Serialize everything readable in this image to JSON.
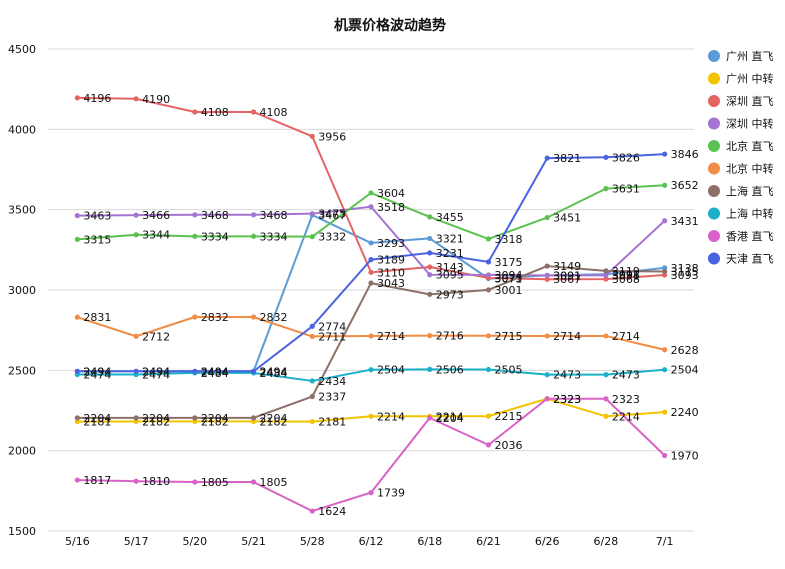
{
  "chart_data": {
    "type": "line",
    "title": "机票价格波动趋势",
    "xlabel": "",
    "ylabel": "",
    "categories": [
      "5/16",
      "5/17",
      "5/20",
      "5/21",
      "5/28",
      "6/12",
      "6/18",
      "6/21",
      "6/26",
      "6/28",
      "7/1"
    ],
    "ylim": [
      1500,
      4500
    ],
    "yticks": [
      1500,
      2000,
      2500,
      3000,
      3500,
      4000,
      4500
    ],
    "grid": true,
    "legend_position": "right",
    "series": [
      {
        "name": "广州 直飞",
        "color": "#5b9bd5",
        "values": [
          2494,
          2494,
          2494,
          2494,
          3467,
          3293,
          3321,
          3071,
          3091,
          3098,
          3138
        ]
      },
      {
        "name": "广州 中转",
        "color": "#f2c300",
        "values": [
          2181,
          2182,
          2182,
          2182,
          2181,
          2214,
          2214,
          2215,
          2323,
          2214,
          2240
        ]
      },
      {
        "name": "深圳 直飞",
        "color": "#e46464",
        "values": [
          4196,
          4190,
          4108,
          4108,
          3956,
          3110,
          3143,
          3075,
          3067,
          3068,
          3093
        ]
      },
      {
        "name": "深圳 中转",
        "color": "#a574d0",
        "values": [
          3463,
          3466,
          3468,
          3468,
          3475,
          3518,
          3095,
          3094,
          3091,
          3091,
          3431
        ]
      },
      {
        "name": "北京 直飞",
        "color": "#5bc251",
        "values": [
          3315,
          3344,
          3334,
          3334,
          3332,
          3604,
          3455,
          3318,
          3451,
          3631,
          3652
        ]
      },
      {
        "name": "北京 中转",
        "color": "#f08c46",
        "values": [
          2831,
          2712,
          2832,
          2832,
          2711,
          2714,
          2716,
          2715,
          2714,
          2714,
          2628
        ]
      },
      {
        "name": "上海 直飞",
        "color": "#8c7068",
        "values": [
          2204,
          2204,
          2204,
          2204,
          2337,
          3043,
          2973,
          3001,
          3149,
          3119,
          3115
        ]
      },
      {
        "name": "上海 中转",
        "color": "#1ab0c8",
        "values": [
          2474,
          2474,
          2484,
          2484,
          2434,
          2504,
          2506,
          2505,
          2473,
          2473,
          2504
        ]
      },
      {
        "name": "香港 直飞",
        "color": "#d962c8",
        "values": [
          1817,
          1810,
          1805,
          1805,
          1624,
          1739,
          2204,
          2036,
          2323,
          2323,
          1970
        ]
      },
      {
        "name": "天津 直飞",
        "color": "#4a63e0",
        "values": [
          2494,
          2494,
          2494,
          2494,
          2774,
          3189,
          3231,
          3175,
          3821,
          3826,
          3846
        ]
      }
    ],
    "data_labels": [
      {
        "series": 0,
        "i": 0,
        "text": "2494"
      },
      {
        "series": 0,
        "i": 1,
        "text": "2494"
      },
      {
        "series": 0,
        "i": 2,
        "text": "2494"
      },
      {
        "series": 0,
        "i": 3,
        "text": "2494"
      },
      {
        "series": 0,
        "i": 4,
        "text": "3467"
      },
      {
        "series": 0,
        "i": 5,
        "text": "3293"
      },
      {
        "series": 0,
        "i": 6,
        "text": "3321"
      },
      {
        "series": 0,
        "i": 7,
        "text": "3071"
      },
      {
        "series": 0,
        "i": 8,
        "text": "3091"
      },
      {
        "series": 0,
        "i": 9,
        "text": "3098"
      },
      {
        "series": 0,
        "i": 10,
        "text": "3138"
      },
      {
        "series": 1,
        "i": 0,
        "text": "2181"
      },
      {
        "series": 1,
        "i": 1,
        "text": "2182"
      },
      {
        "series": 1,
        "i": 2,
        "text": "2182"
      },
      {
        "series": 1,
        "i": 3,
        "text": "2182"
      },
      {
        "series": 1,
        "i": 4,
        "text": "2181"
      },
      {
        "series": 1,
        "i": 5,
        "text": "2214"
      },
      {
        "series": 1,
        "i": 6,
        "text": "2214"
      },
      {
        "series": 1,
        "i": 7,
        "text": "2215"
      },
      {
        "series": 1,
        "i": 8,
        "text": "2323"
      },
      {
        "series": 1,
        "i": 9,
        "text": "2214"
      },
      {
        "series": 1,
        "i": 10,
        "text": "2240"
      },
      {
        "series": 2,
        "i": 0,
        "text": "4196"
      },
      {
        "series": 2,
        "i": 1,
        "text": "4190"
      },
      {
        "series": 2,
        "i": 2,
        "text": "4108"
      },
      {
        "series": 2,
        "i": 3,
        "text": "4108"
      },
      {
        "series": 2,
        "i": 4,
        "text": "3956"
      },
      {
        "series": 2,
        "i": 5,
        "text": "3110"
      },
      {
        "series": 2,
        "i": 6,
        "text": "3143"
      },
      {
        "series": 2,
        "i": 7,
        "text": "3075"
      },
      {
        "series": 2,
        "i": 8,
        "text": "3067"
      },
      {
        "series": 2,
        "i": 9,
        "text": "3068"
      },
      {
        "series": 2,
        "i": 10,
        "text": "3093"
      },
      {
        "series": 3,
        "i": 0,
        "text": "3463"
      },
      {
        "series": 3,
        "i": 1,
        "text": "3466"
      },
      {
        "series": 3,
        "i": 2,
        "text": "3468"
      },
      {
        "series": 3,
        "i": 3,
        "text": "3468"
      },
      {
        "series": 3,
        "i": 4,
        "text": "3475"
      },
      {
        "series": 3,
        "i": 5,
        "text": "3518"
      },
      {
        "series": 3,
        "i": 6,
        "text": "3095"
      },
      {
        "series": 3,
        "i": 7,
        "text": "3094"
      },
      {
        "series": 3,
        "i": 8,
        "text": "3091"
      },
      {
        "series": 3,
        "i": 9,
        "text": "3091"
      },
      {
        "series": 3,
        "i": 10,
        "text": "3431"
      },
      {
        "series": 4,
        "i": 0,
        "text": "3315"
      },
      {
        "series": 4,
        "i": 1,
        "text": "3344"
      },
      {
        "series": 4,
        "i": 2,
        "text": "3334"
      },
      {
        "series": 4,
        "i": 3,
        "text": "3334"
      },
      {
        "series": 4,
        "i": 4,
        "text": "3332"
      },
      {
        "series": 4,
        "i": 5,
        "text": "3604"
      },
      {
        "series": 4,
        "i": 6,
        "text": "3455"
      },
      {
        "series": 4,
        "i": 7,
        "text": "3318"
      },
      {
        "series": 4,
        "i": 8,
        "text": "3451"
      },
      {
        "series": 4,
        "i": 9,
        "text": "3631"
      },
      {
        "series": 4,
        "i": 10,
        "text": "3652"
      },
      {
        "series": 5,
        "i": 0,
        "text": "2831"
      },
      {
        "series": 5,
        "i": 1,
        "text": "2712"
      },
      {
        "series": 5,
        "i": 2,
        "text": "2832"
      },
      {
        "series": 5,
        "i": 3,
        "text": "2832"
      },
      {
        "series": 5,
        "i": 4,
        "text": "2711"
      },
      {
        "series": 5,
        "i": 5,
        "text": "2714"
      },
      {
        "series": 5,
        "i": 6,
        "text": "2716"
      },
      {
        "series": 5,
        "i": 7,
        "text": "2715"
      },
      {
        "series": 5,
        "i": 8,
        "text": "2714"
      },
      {
        "series": 5,
        "i": 9,
        "text": "2714"
      },
      {
        "series": 5,
        "i": 10,
        "text": "2628"
      },
      {
        "series": 6,
        "i": 0,
        "text": "2204"
      },
      {
        "series": 6,
        "i": 1,
        "text": "2204"
      },
      {
        "series": 6,
        "i": 2,
        "text": "2204"
      },
      {
        "series": 6,
        "i": 3,
        "text": "2204"
      },
      {
        "series": 6,
        "i": 4,
        "text": "2337"
      },
      {
        "series": 6,
        "i": 5,
        "text": "3043"
      },
      {
        "series": 6,
        "i": 6,
        "text": "2973"
      },
      {
        "series": 6,
        "i": 7,
        "text": "3001"
      },
      {
        "series": 6,
        "i": 8,
        "text": "3149"
      },
      {
        "series": 6,
        "i": 9,
        "text": "3119"
      },
      {
        "series": 6,
        "i": 10,
        "text": "3115"
      },
      {
        "series": 7,
        "i": 0,
        "text": "2474"
      },
      {
        "series": 7,
        "i": 1,
        "text": "2474"
      },
      {
        "series": 7,
        "i": 2,
        "text": "2484"
      },
      {
        "series": 7,
        "i": 3,
        "text": "2484"
      },
      {
        "series": 7,
        "i": 4,
        "text": "2434"
      },
      {
        "series": 7,
        "i": 5,
        "text": "2504"
      },
      {
        "series": 7,
        "i": 6,
        "text": "2506"
      },
      {
        "series": 7,
        "i": 7,
        "text": "2505"
      },
      {
        "series": 7,
        "i": 8,
        "text": "2473"
      },
      {
        "series": 7,
        "i": 9,
        "text": "2473"
      },
      {
        "series": 7,
        "i": 10,
        "text": "2504"
      },
      {
        "series": 8,
        "i": 0,
        "text": "1817"
      },
      {
        "series": 8,
        "i": 1,
        "text": "1810"
      },
      {
        "series": 8,
        "i": 2,
        "text": "1805"
      },
      {
        "series": 8,
        "i": 3,
        "text": "1805"
      },
      {
        "series": 8,
        "i": 4,
        "text": "1624"
      },
      {
        "series": 8,
        "i": 5,
        "text": "1739"
      },
      {
        "series": 8,
        "i": 6,
        "text": "2204"
      },
      {
        "series": 8,
        "i": 7,
        "text": "2036"
      },
      {
        "series": 8,
        "i": 8,
        "text": "2323"
      },
      {
        "series": 8,
        "i": 9,
        "text": "2323"
      },
      {
        "series": 8,
        "i": 10,
        "text": "1970"
      },
      {
        "series": 9,
        "i": 0,
        "text": "2494"
      },
      {
        "series": 9,
        "i": 1,
        "text": "2494"
      },
      {
        "series": 9,
        "i": 2,
        "text": "2494"
      },
      {
        "series": 9,
        "i": 3,
        "text": "2494"
      },
      {
        "series": 9,
        "i": 4,
        "text": "2774"
      },
      {
        "series": 9,
        "i": 5,
        "text": "3189"
      },
      {
        "series": 9,
        "i": 6,
        "text": "3231"
      },
      {
        "series": 9,
        "i": 7,
        "text": "3175"
      },
      {
        "series": 9,
        "i": 8,
        "text": "3821"
      },
      {
        "series": 9,
        "i": 9,
        "text": "3826"
      },
      {
        "series": 9,
        "i": 10,
        "text": "3846"
      }
    ]
  }
}
